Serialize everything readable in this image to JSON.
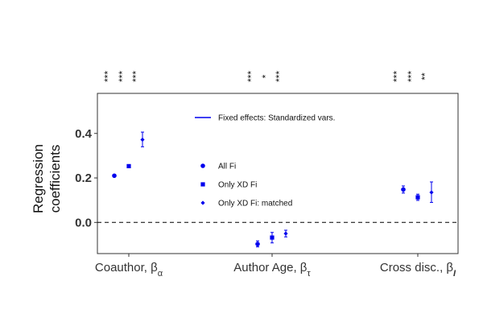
{
  "chart_data": {
    "type": "scatter",
    "title": "",
    "ylabel_lines": [
      "Regression",
      "coefficients"
    ],
    "ylim": [
      -0.14,
      0.58
    ],
    "y_ticks": [
      "0.0",
      "0.2",
      "0.4"
    ],
    "grid": false,
    "reference_line": {
      "y": 0.0,
      "style": "dashed"
    },
    "categories": [
      {
        "label": "Coauthor, β",
        "subscript": "α"
      },
      {
        "label": "Author Age, β",
        "subscript": "τ"
      },
      {
        "label": "Cross disc., β",
        "subscript": "I"
      }
    ],
    "legend_line_label": "Fixed effects: Standardized vars.",
    "color": "#0000ee",
    "series": [
      {
        "name": "All Fi",
        "marker": "circle",
        "points": [
          {
            "category": "Coauthor, β",
            "y": 0.21,
            "lo": 0.21,
            "hi": 0.21,
            "sig": "***"
          },
          {
            "category": "Author Age, β",
            "y": -0.097,
            "lo": -0.11,
            "hi": -0.083,
            "sig": "***"
          },
          {
            "category": "Cross disc., β",
            "y": 0.148,
            "lo": 0.132,
            "hi": 0.164,
            "sig": "***"
          }
        ]
      },
      {
        "name": "Only XD Fi",
        "marker": "square",
        "points": [
          {
            "category": "Coauthor, β",
            "y": 0.253,
            "lo": 0.249,
            "hi": 0.257,
            "sig": "***"
          },
          {
            "category": "Author Age, β",
            "y": -0.068,
            "lo": -0.092,
            "hi": -0.045,
            "sig": "*"
          },
          {
            "category": "Cross disc., β",
            "y": 0.113,
            "lo": 0.099,
            "hi": 0.127,
            "sig": "***"
          }
        ]
      },
      {
        "name": "Only XD Fi: matched",
        "marker": "diamond",
        "points": [
          {
            "category": "Coauthor, β",
            "y": 0.372,
            "lo": 0.34,
            "hi": 0.406,
            "sig": "***"
          },
          {
            "category": "Author Age, β",
            "y": -0.05,
            "lo": -0.065,
            "hi": -0.035,
            "sig": "***"
          },
          {
            "category": "Cross disc., β",
            "y": 0.135,
            "lo": 0.09,
            "hi": 0.182,
            "sig": "**"
          }
        ]
      }
    ]
  }
}
